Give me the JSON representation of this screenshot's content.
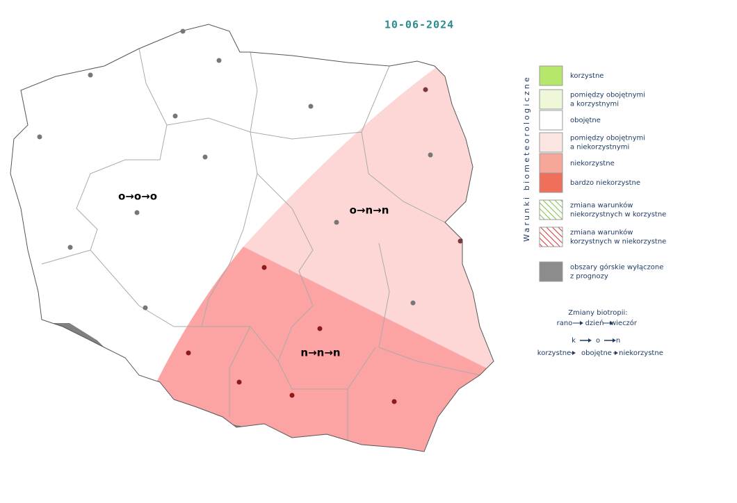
{
  "date": "10-06-2024",
  "regions": [
    {
      "label": "o→o→o"
    },
    {
      "label": "o→n→n"
    },
    {
      "label": "n→n→n"
    }
  ],
  "legend": {
    "title": "Warunki biometeorologiczne",
    "items": [
      {
        "lines": [
          "korzystne"
        ]
      },
      {
        "lines": [
          "pomiędzy obojętnymi",
          "a korzystnymi"
        ]
      },
      {
        "lines": [
          "obojętne"
        ]
      },
      {
        "lines": [
          "pomiędzy obojętnymi",
          "a niekorzystnymi"
        ]
      },
      {
        "lines": [
          "niekorzystne"
        ]
      },
      {
        "lines": [
          "bardzo niekorzystne"
        ]
      },
      {
        "lines": [
          "zmiana warunków",
          "niekorzystnych w korzystne"
        ]
      },
      {
        "lines": [
          "zmiana warunków",
          "korzystnych w niekorzystne"
        ]
      },
      {
        "lines": [
          "obszary górskie wyłączone",
          "z prognozy"
        ]
      }
    ]
  },
  "biotropy": {
    "title": "Zmiany biotropii:",
    "times": [
      "rano",
      "dzień",
      "wieczór"
    ],
    "example": [
      "k",
      "o",
      "n"
    ],
    "meanings": [
      "korzystne",
      "obojętne",
      "niekorzystne"
    ]
  }
}
